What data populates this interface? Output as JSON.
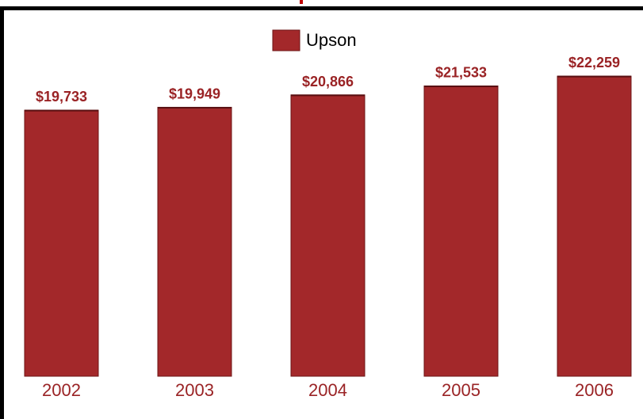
{
  "chart_data": {
    "type": "bar",
    "categories": [
      "2002",
      "2003",
      "2004",
      "2005",
      "2006"
    ],
    "series": [
      {
        "name": "Upson",
        "values": [
          19733,
          19949,
          20866,
          21533,
          22259
        ],
        "labels": [
          "$19,733",
          "$19,949",
          "$20,866",
          "$21,533",
          "$22,259"
        ]
      }
    ],
    "ylim": [
      0,
      23500
    ],
    "grid": false,
    "legend": "top-center",
    "colors": {
      "bar": "#a3282a",
      "bar_edge": "#6e1516",
      "label": "#9a2325",
      "category": "#9a2325",
      "legend_text": "#000000"
    }
  }
}
